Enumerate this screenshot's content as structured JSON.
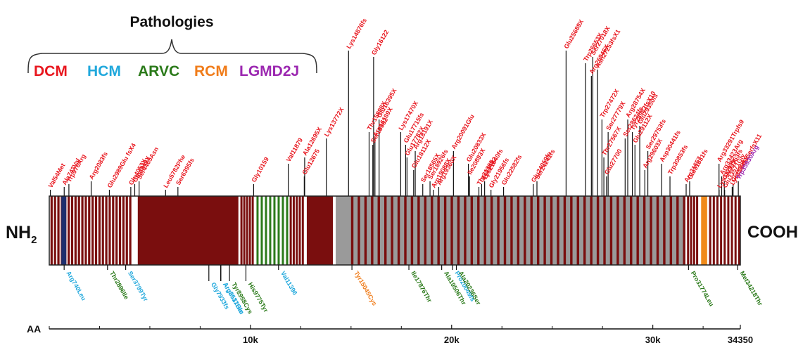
{
  "title": "Pathologies",
  "terminals": {
    "n": "NH",
    "n_sub": "2",
    "c": "COOH"
  },
  "axis": {
    "label": "AA",
    "ticks": [
      "10k",
      "20k",
      "30k",
      "34350"
    ]
  },
  "colors": {
    "dcm": "#e8161e",
    "hcm": "#20a8dc",
    "arvc": "#2b7a1a",
    "rcm": "#f07c1a",
    "lgmd": "#9b27b0",
    "bar": "#7a0e0e",
    "grey": "#9a9a9a",
    "blue": "#1e2f6e",
    "orange": "#f08a1a"
  },
  "legend": [
    {
      "key": "dcm",
      "text": "DCM"
    },
    {
      "key": "hcm",
      "text": "HCM"
    },
    {
      "key": "arvc",
      "text": "ARVC"
    },
    {
      "key": "rcm",
      "text": "RCM"
    },
    {
      "key": "lgmd",
      "text": "LGMD2J"
    }
  ],
  "top_mutations": [
    {
      "text": "Val54Met",
      "aa": 54,
      "h": 0
    },
    {
      "text": "Ala743Val",
      "aa": 743,
      "h": 0
    },
    {
      "text": "Trp976Arg",
      "aa": 976,
      "h": 0
    },
    {
      "text": "Arg2083fs",
      "aa": 2083,
      "h": 0
    },
    {
      "text": "Glu2989Glu fsX4",
      "aa": 2989,
      "h": 0
    },
    {
      "text": "Gln4053X",
      "aa": 4053,
      "h": 0
    },
    {
      "text": "Glu4249X",
      "aa": 4249,
      "h": 0
    },
    {
      "text": "Ser4465Asn",
      "aa": 4465,
      "h": 0
    },
    {
      "text": "Leu5782Phe",
      "aa": 5782,
      "h": 0
    },
    {
      "text": "Ser6395fs",
      "aa": 6395,
      "h": 0
    },
    {
      "text": "Gly10159",
      "aa": 10159,
      "h": 0
    },
    {
      "text": "Val11879",
      "aa": 11879,
      "h": 1
    },
    {
      "text": "Glu12675",
      "aa": 12675,
      "h": 1
    },
    {
      "text": "Ala12695X",
      "aa": 12695,
      "h": 1
    },
    {
      "text": "Lys13772X",
      "aa": 13772,
      "h": 2
    },
    {
      "text": "Lys14876fs",
      "aa": 14876,
      "h": 3
    },
    {
      "text": "Thr15898X",
      "aa": 15898,
      "h": 2
    },
    {
      "text": "Ser16082",
      "aa": 16082,
      "h": 2
    },
    {
      "text": "Gly16122",
      "aa": 16122,
      "h": 3
    },
    {
      "text": "Arg16189X",
      "aa": 16189,
      "h": 2
    },
    {
      "text": "Glu16395X",
      "aa": 16395,
      "h": 2
    },
    {
      "text": "Lys17470X",
      "aa": 17470,
      "h": 2
    },
    {
      "text": "Glu17715fs",
      "aa": 17715,
      "h": 2
    },
    {
      "text": "Glu17782X",
      "aa": 17782,
      "h": 1
    },
    {
      "text": "Glu18112X",
      "aa": 18112,
      "h": 1
    },
    {
      "text": "Arg18191X",
      "aa": 18191,
      "h": 1
    },
    {
      "text": "Ser18565X",
      "aa": 18565,
      "h": 0
    },
    {
      "text": "Ser18926fs",
      "aa": 18926,
      "h": 0
    },
    {
      "text": "Arg19088X",
      "aa": 19088,
      "h": 0
    },
    {
      "text": "Arg19360X",
      "aa": 19360,
      "h": 0
    },
    {
      "text": "Arg20091Glu",
      "aa": 20091,
      "h": 1
    },
    {
      "text": "Glu20833X",
      "aa": 20833,
      "h": 1
    },
    {
      "text": "Ile20893X",
      "aa": 20893,
      "h": 1
    },
    {
      "text": "Thr21355",
      "aa": 21355,
      "h": 0
    },
    {
      "text": "Gly21492",
      "aa": 21492,
      "h": 0
    },
    {
      "text": "Lys21640fs",
      "aa": 21640,
      "h": 0
    },
    {
      "text": "Gly21956fs",
      "aa": 21956,
      "h": 0
    },
    {
      "text": "Glu22582fs",
      "aa": 22582,
      "h": 0
    },
    {
      "text": "Glu24059fs",
      "aa": 24059,
      "h": 0
    },
    {
      "text": "Ser24241fs",
      "aa": 24241,
      "h": 0
    },
    {
      "text": "Glu25689X",
      "aa": 25689,
      "h": 3
    },
    {
      "text": "Trp26653X",
      "aa": 26653,
      "h": 3
    },
    {
      "text": "Arg26946X",
      "aa": 26946,
      "h": 3
    },
    {
      "text": "Ser27018X",
      "aa": 27018,
      "h": 3
    },
    {
      "text": "Asn27253fsX1",
      "aa": 27253,
      "h": 3
    },
    {
      "text": "Trp27472X",
      "aa": 27472,
      "h": 2
    },
    {
      "text": "Ser27779X",
      "aa": 27779,
      "h": 2
    },
    {
      "text": "Glu27700",
      "aa": 27700,
      "h": 1
    },
    {
      "text": "Thr27567X",
      "aa": 27567,
      "h": 1
    },
    {
      "text": "Ser28624fs",
      "aa": 28624,
      "h": 2
    },
    {
      "text": "Arg28754X",
      "aa": 28754,
      "h": 2
    },
    {
      "text": "Tyr28983fsX10",
      "aa": 28983,
      "h": 2
    },
    {
      "text": "Glu29112X",
      "aa": 29112,
      "h": 2
    },
    {
      "text": "Glu29350fs",
      "aa": 29350,
      "h": 2
    },
    {
      "text": "Arg29603X",
      "aa": 29603,
      "h": 1
    },
    {
      "text": "Ser29753fs",
      "aa": 29753,
      "h": 1
    },
    {
      "text": "Asp30441fs",
      "aa": 30441,
      "h": 1
    },
    {
      "text": "Trp30853fs",
      "aa": 30853,
      "h": 1
    },
    {
      "text": "Arg31657",
      "aa": 31657,
      "h": 0
    },
    {
      "text": "Glu31831fs",
      "aa": 31831,
      "h": 0
    },
    {
      "text": "Lys33297X",
      "aa": 33297,
      "h": 0
    },
    {
      "text": "Arg33291Trpfs9",
      "aa": 33291,
      "h": 1
    },
    {
      "text": "Arg33423Arg",
      "aa": 33423,
      "h": 1
    },
    {
      "text": "Glu33553fs",
      "aa": 33553,
      "h": 0
    },
    {
      "text": "Glu33571Gly",
      "aa": 33571,
      "h": 0
    },
    {
      "text": "Lys33945X",
      "aa": 33945,
      "h": 0
    },
    {
      "text": "Gly33991SerfsX11",
      "aa": 33991,
      "h": 0
    },
    {
      "text": "Trp35930Arg",
      "aa": 34250,
      "h": 0
    }
  ],
  "bottom_mutations": [
    {
      "text": "Arg740Leu",
      "aa": 740,
      "kind": "hcm",
      "d": 0
    },
    {
      "text": "Thr2896Ile",
      "aa": 2896,
      "kind": "arvc",
      "d": 0
    },
    {
      "text": "Ser3799Tyr",
      "aa": 3799,
      "kind": "hcm",
      "d": 0
    },
    {
      "text": "Gly7933fs",
      "aa": 7933,
      "kind": "hcm",
      "d": 1
    },
    {
      "text": "Tyr8958Cys",
      "aa": 8958,
      "kind": "arvc",
      "d": 1
    },
    {
      "text": "Arg8517His",
      "aa": 8517,
      "kind": "hcm",
      "d": 1
    },
    {
      "text": "Arg8531Gln",
      "aa": 8531,
      "kind": "hcm",
      "d": 1
    },
    {
      "text": "His9775Tyr",
      "aa": 9775,
      "kind": "arvc",
      "d": 1
    },
    {
      "text": "Val11396",
      "aa": 11396,
      "kind": "hcm",
      "d": 0
    },
    {
      "text": "Tyr15045Cys",
      "aa": 15045,
      "kind": "rcm",
      "d": 0
    },
    {
      "text": "Ile17876Thr",
      "aa": 17876,
      "kind": "arvc",
      "d": 0
    },
    {
      "text": "Ala19506Thr",
      "aa": 19506,
      "kind": "arvc",
      "d": 0
    },
    {
      "text": "Pro20049fs",
      "aa": 20049,
      "kind": "hcm",
      "d": 0
    },
    {
      "text": "Ala20236Ser",
      "aa": 20236,
      "kind": "arvc",
      "d": 0
    },
    {
      "text": "Pro31774Leu",
      "aa": 31774,
      "kind": "arvc",
      "d": 0
    },
    {
      "text": "Met34218Thr",
      "aa": 34218,
      "kind": "arvc",
      "d": 0
    }
  ]
}
